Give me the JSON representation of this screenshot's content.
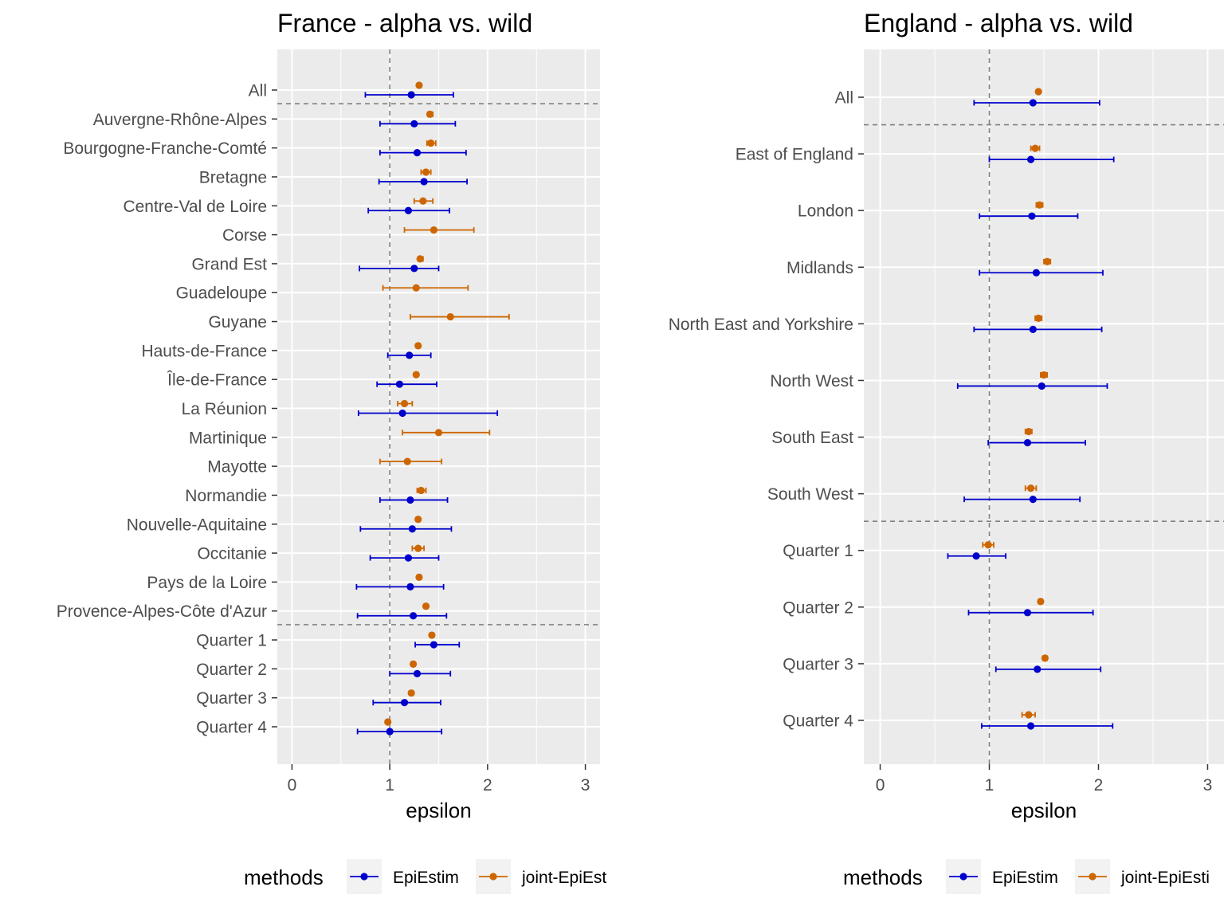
{
  "colors": {
    "panel_bg": "#ebebeb",
    "grid": "#ffffff",
    "epiestim": "#0000cd",
    "joint": "#cd6600",
    "reference_line": "#808080",
    "tick_text": "#4d4d4d"
  },
  "chart_data": [
    {
      "type": "errorbar",
      "title": "France - alpha vs. wild",
      "xlabel": "epsilon",
      "ylabel": "",
      "xlim": [
        -0.15,
        3.15
      ],
      "xticks": [
        "0",
        "1",
        "2",
        "3"
      ],
      "reference_x": 1,
      "grid": true,
      "separators_after": [
        "All",
        "Provence-Alpes-Côte d'Azur"
      ],
      "categories": [
        "All",
        "Auvergne-Rhône-Alpes",
        "Bourgogne-Franche-Comté",
        "Bretagne",
        "Centre-Val de Loire",
        "Corse",
        "Grand Est",
        "Guadeloupe",
        "Guyane",
        "Hauts-de-France",
        "Île-de-France",
        "La Réunion",
        "Martinique",
        "Mayotte",
        "Normandie",
        "Nouvelle-Aquitaine",
        "Occitanie",
        "Pays de la Loire",
        "Provence-Alpes-Côte d'Azur",
        "Quarter 1",
        "Quarter 2",
        "Quarter 3",
        "Quarter 4"
      ],
      "series": [
        {
          "name": "EpiEstim",
          "values": [
            1.22,
            1.25,
            1.28,
            1.35,
            1.19,
            null,
            1.25,
            null,
            null,
            1.2,
            1.1,
            1.13,
            null,
            null,
            1.21,
            1.23,
            1.19,
            1.21,
            1.24,
            1.45,
            1.28,
            1.15,
            1.0
          ],
          "lower": [
            0.75,
            0.9,
            0.9,
            0.89,
            0.78,
            null,
            0.69,
            null,
            null,
            0.98,
            0.87,
            0.68,
            null,
            null,
            0.9,
            0.7,
            0.8,
            0.66,
            0.67,
            1.26,
            1.0,
            0.83,
            0.67
          ],
          "upper": [
            1.65,
            1.67,
            1.78,
            1.79,
            1.61,
            null,
            1.5,
            null,
            null,
            1.42,
            1.48,
            2.1,
            null,
            null,
            1.59,
            1.63,
            1.5,
            1.55,
            1.58,
            1.71,
            1.62,
            1.52,
            1.53
          ]
        },
        {
          "name": "joint-EpiEstim",
          "values": [
            1.3,
            1.41,
            1.42,
            1.37,
            1.34,
            1.45,
            1.31,
            1.27,
            1.62,
            1.29,
            1.27,
            1.15,
            1.5,
            1.18,
            1.32,
            1.29,
            1.29,
            1.3,
            1.37,
            1.43,
            1.24,
            1.22,
            0.98
          ],
          "lower": [
            1.29,
            1.39,
            1.38,
            1.32,
            1.25,
            1.15,
            1.29,
            0.93,
            1.21,
            1.27,
            1.25,
            1.08,
            1.13,
            0.9,
            1.28,
            1.27,
            1.23,
            1.28,
            1.35,
            1.41,
            1.22,
            1.2,
            0.97
          ],
          "upper": [
            1.31,
            1.44,
            1.47,
            1.42,
            1.44,
            1.86,
            1.34,
            1.8,
            2.22,
            1.31,
            1.29,
            1.23,
            2.02,
            1.53,
            1.37,
            1.31,
            1.35,
            1.32,
            1.39,
            1.45,
            1.26,
            1.24,
            0.99
          ]
        }
      ],
      "legend": {
        "title": "methods",
        "position": "bottom",
        "entries": [
          "EpiEstim",
          "joint-EpiEst"
        ]
      }
    },
    {
      "type": "errorbar",
      "title": "England - alpha vs. wild",
      "xlabel": "epsilon",
      "ylabel": "",
      "xlim": [
        -0.15,
        3.15
      ],
      "xticks": [
        "0",
        "1",
        "2",
        "3"
      ],
      "reference_x": 1,
      "grid": true,
      "separators_after": [
        "All",
        "South West"
      ],
      "categories": [
        "All",
        "East of England",
        "London",
        "Midlands",
        "North East and Yorkshire",
        "North West",
        "South East",
        "South West",
        "Quarter 1",
        "Quarter 2",
        "Quarter 3",
        "Quarter 4"
      ],
      "series": [
        {
          "name": "EpiEstim",
          "values": [
            1.4,
            1.38,
            1.39,
            1.43,
            1.4,
            1.48,
            1.35,
            1.4,
            0.88,
            1.35,
            1.44,
            1.38
          ],
          "lower": [
            0.86,
            1.0,
            0.91,
            0.91,
            0.86,
            0.71,
            0.99,
            0.77,
            0.62,
            0.81,
            1.06,
            0.93
          ],
          "upper": [
            2.01,
            2.14,
            1.81,
            2.04,
            2.03,
            2.08,
            1.88,
            1.83,
            1.15,
            1.95,
            2.02,
            2.13
          ]
        },
        {
          "name": "joint-EpiEstim",
          "values": [
            1.45,
            1.42,
            1.46,
            1.53,
            1.45,
            1.5,
            1.36,
            1.38,
            0.99,
            1.47,
            1.51,
            1.36
          ],
          "lower": [
            1.44,
            1.38,
            1.43,
            1.5,
            1.42,
            1.47,
            1.33,
            1.33,
            0.94,
            1.45,
            1.49,
            1.3
          ],
          "upper": [
            1.46,
            1.46,
            1.49,
            1.56,
            1.48,
            1.53,
            1.39,
            1.43,
            1.04,
            1.49,
            1.53,
            1.42
          ]
        }
      ],
      "legend": {
        "title": "methods",
        "position": "bottom",
        "entries": [
          "EpiEstim",
          "joint-EpiEsti"
        ]
      }
    }
  ]
}
